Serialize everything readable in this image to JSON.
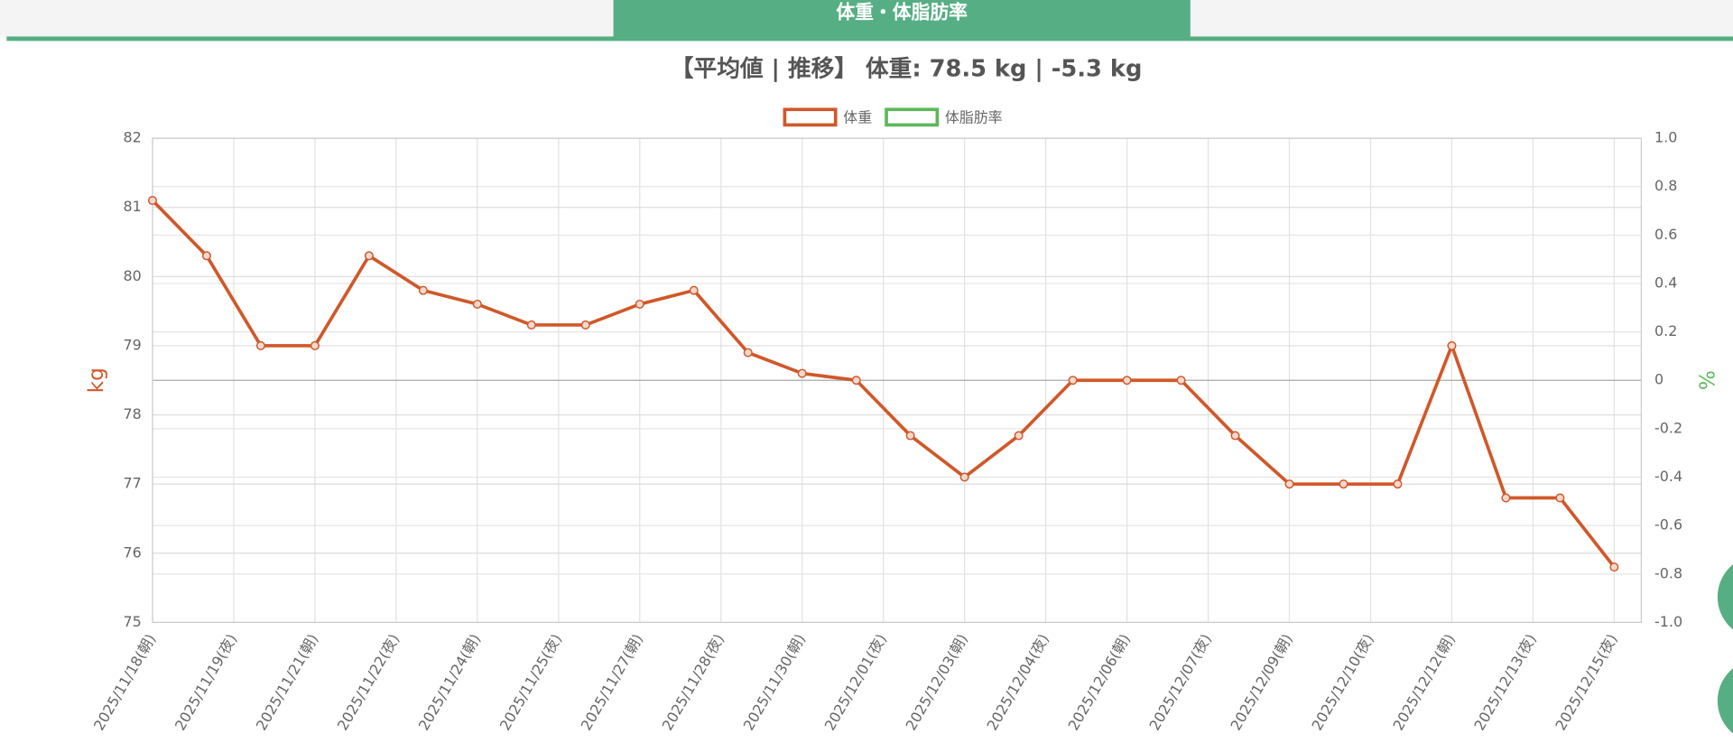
{
  "header": {
    "tab": "体重・体脂肪率"
  },
  "chart_data": {
    "type": "line",
    "title": "【平均値 | 推移】 体重: 78.5 kg | -5.3 kg",
    "ylabel": "kg",
    "y2label": "%",
    "categories": [
      "2025/11/18(朝)",
      null,
      null,
      "2025/11/19(夜)",
      null,
      null,
      "2025/11/21(朝)",
      null,
      null,
      "2025/11/22(夜)",
      null,
      null,
      "2025/11/24(朝)",
      null,
      null,
      "2025/11/25(夜)",
      null,
      null,
      "2025/11/27(朝)",
      null,
      null,
      "2025/11/28(夜)",
      null,
      null,
      "2025/11/30(朝)",
      null,
      null,
      "2025/12/01(夜)",
      null,
      null,
      "2025/12/03(朝)",
      null,
      null,
      "2025/12/04(夜)",
      null,
      null,
      "2025/12/06(朝)",
      null,
      null,
      "2025/12/07(夜)",
      null,
      null,
      "2025/12/09(朝)",
      null,
      null,
      "2025/12/10(夜)",
      null,
      null,
      "2025/12/12(朝)",
      null,
      null,
      "2025/12/13(夜)",
      null,
      null,
      "2025/12/15(夜)"
    ],
    "series": [
      {
        "name": "体重",
        "color": "#d0582a",
        "axis": "y",
        "values": [
          81.1,
          null,
          80.3,
          null,
          79.0,
          null,
          79.0,
          null,
          80.3,
          null,
          79.8,
          null,
          79.6,
          null,
          79.3,
          null,
          79.3,
          null,
          79.6,
          null,
          79.8,
          null,
          78.9,
          null,
          78.6,
          null,
          78.5,
          null,
          77.7,
          null,
          77.1,
          null,
          77.7,
          null,
          78.5,
          null,
          78.5,
          null,
          78.5,
          null,
          77.7,
          null,
          77.0,
          null,
          77.0,
          null,
          77.0,
          null,
          79.0,
          null,
          76.8,
          null,
          76.8,
          null,
          75.8
        ]
      },
      {
        "name": "体脂肪率",
        "color": "#5cb85c",
        "axis": "y2",
        "values": [
          null,
          null,
          null,
          null,
          null,
          null,
          null,
          null,
          null,
          null,
          null,
          null,
          null,
          null,
          null,
          null,
          null,
          null,
          null,
          null,
          null,
          null,
          null,
          null,
          null,
          null,
          null,
          null,
          null,
          null,
          null,
          null,
          null,
          null,
          null,
          null,
          null,
          null,
          null,
          null,
          null,
          null,
          null,
          null,
          null,
          null,
          null,
          null,
          null,
          null,
          null,
          null,
          null,
          null,
          null
        ]
      }
    ],
    "ylim": [
      75,
      82
    ],
    "yticks": [
      75,
      76,
      77,
      78,
      79,
      80,
      81,
      82
    ],
    "y2lim": [
      -1,
      1
    ],
    "y2ticks": [
      {
        "value": -1,
        "label": "-1.0"
      },
      -0.8,
      -0.6,
      -0.4,
      -0.2,
      0,
      0.2,
      0.4,
      0.6,
      0.8,
      {
        "value": 1,
        "label": "1.0"
      }
    ],
    "grid": true,
    "legend": "top"
  }
}
